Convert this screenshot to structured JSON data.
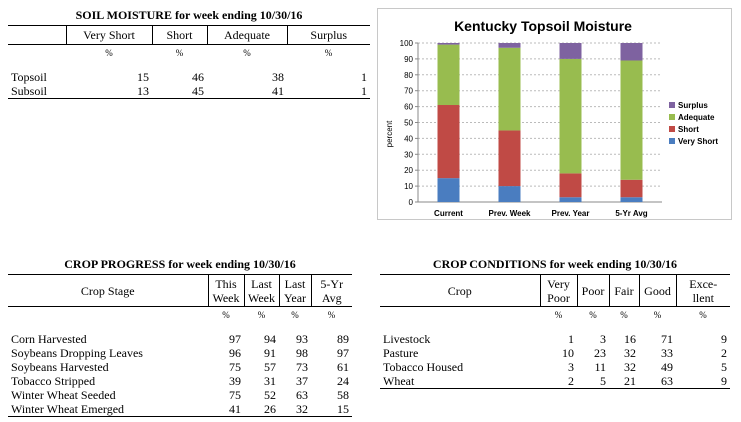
{
  "soil_moisture": {
    "title": "SOIL MOISTURE for week ending 10/30/16",
    "columns": [
      "Very Short",
      "Short",
      "Adequate",
      "Surplus"
    ],
    "unit_row": [
      "%",
      "%",
      "%",
      "%"
    ],
    "rows": [
      {
        "label": "Topsoil",
        "values": [
          "15",
          "46",
          "38",
          "1"
        ]
      },
      {
        "label": "Subsoil",
        "values": [
          "13",
          "45",
          "41",
          "1"
        ]
      }
    ]
  },
  "chart_data": {
    "type": "bar",
    "stacked": true,
    "title": "Kentucky Topsoil Moisture",
    "ylabel": "percent",
    "xlabel": "",
    "categories": [
      "Current",
      "Prev. Week",
      "Prev. Year",
      "5-Yr Avg"
    ],
    "ylim": [
      0,
      100
    ],
    "yticks": [
      "0",
      "10",
      "20",
      "30",
      "40",
      "50",
      "60",
      "70",
      "80",
      "90",
      "100"
    ],
    "grid": true,
    "legend_position": "right",
    "series": [
      {
        "name": "Very Short",
        "color": "#4a7dc0",
        "values": [
          15,
          10,
          3,
          3
        ]
      },
      {
        "name": "Short",
        "color": "#c04a45",
        "values": [
          46,
          35,
          15,
          11
        ]
      },
      {
        "name": "Adequate",
        "color": "#98bc4f",
        "values": [
          38,
          52,
          72,
          75
        ]
      },
      {
        "name": "Surplus",
        "color": "#7e62a0",
        "values": [
          1,
          3,
          10,
          11
        ]
      }
    ]
  },
  "crop_progress": {
    "title": "CROP PROGRESS for week ending 10/30/16",
    "stage_header": "Crop Stage",
    "columns": [
      {
        "line1": "This",
        "line2": "Week"
      },
      {
        "line1": "Last",
        "line2": "Week"
      },
      {
        "line1": "Last",
        "line2": "Year"
      },
      {
        "line1": "5-Yr",
        "line2": "Avg"
      }
    ],
    "unit_row": [
      "%",
      "%",
      "%",
      "%"
    ],
    "rows": [
      {
        "label": "Corn Harvested",
        "values": [
          "97",
          "94",
          "93",
          "89"
        ]
      },
      {
        "label": "Soybeans Dropping Leaves",
        "values": [
          "96",
          "91",
          "98",
          "97"
        ]
      },
      {
        "label": "Soybeans Harvested",
        "values": [
          "75",
          "57",
          "73",
          "61"
        ]
      },
      {
        "label": "Tobacco Stripped",
        "values": [
          "39",
          "31",
          "37",
          "24"
        ]
      },
      {
        "label": "Winter Wheat Seeded",
        "values": [
          "75",
          "52",
          "63",
          "58"
        ]
      },
      {
        "label": "Winter Wheat Emerged",
        "values": [
          "41",
          "26",
          "32",
          "15"
        ]
      }
    ]
  },
  "crop_conditions": {
    "title": "CROP CONDITIONS for week ending 10/30/16",
    "crop_header": "Crop",
    "columns": [
      {
        "line1": "Very",
        "line2": "Poor"
      },
      {
        "line1": "Poor",
        "line2": ""
      },
      {
        "line1": "Fair",
        "line2": ""
      },
      {
        "line1": "Good",
        "line2": ""
      },
      {
        "line1": "Exce-",
        "line2": "llent"
      }
    ],
    "unit_row": [
      "%",
      "%",
      "%",
      "%",
      "%"
    ],
    "rows": [
      {
        "label": "Livestock",
        "values": [
          "1",
          "3",
          "16",
          "71",
          "9"
        ]
      },
      {
        "label": "Pasture",
        "values": [
          "10",
          "23",
          "32",
          "33",
          "2"
        ]
      },
      {
        "label": "Tobacco Housed",
        "values": [
          "3",
          "11",
          "32",
          "49",
          "5"
        ]
      },
      {
        "label": "Wheat",
        "values": [
          "2",
          "5",
          "21",
          "63",
          "9"
        ]
      }
    ]
  }
}
